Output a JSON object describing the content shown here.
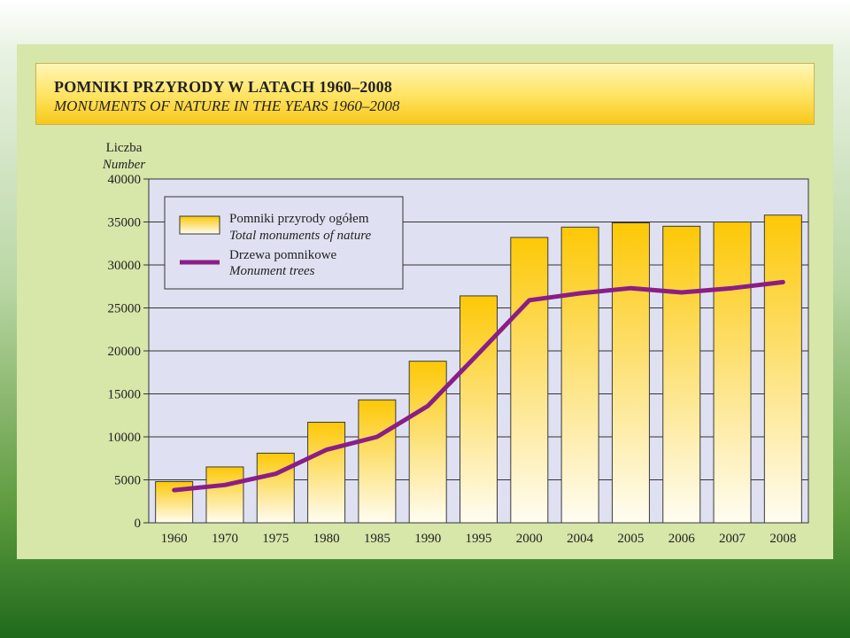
{
  "header": {
    "title_pl": "POMNIKI PRZYRODY W LATACH 1960–2008",
    "title_en": "MONUMENTS OF NATURE IN THE YEARS 1960–2008"
  },
  "chart_data": {
    "type": "bar",
    "title": "POMNIKI PRZYRODY W LATACH 1960–2008",
    "subtitle": "MONUMENTS OF NATURE IN THE YEARS 1960–2008",
    "ylabel": "Liczba",
    "ylabel_en": "Number",
    "xlabel": "",
    "ylim": [
      0,
      40000
    ],
    "yticks": [
      0,
      5000,
      10000,
      15000,
      20000,
      25000,
      30000,
      35000,
      40000
    ],
    "categories": [
      "1960",
      "1970",
      "1975",
      "1980",
      "1985",
      "1990",
      "1995",
      "2000",
      "2004",
      "2005",
      "2006",
      "2007",
      "2008"
    ],
    "series": [
      {
        "name": "Pomniki przyrody ogółem",
        "name_en": "Total monuments of nature",
        "kind": "bar",
        "values": [
          4800,
          6500,
          8100,
          11700,
          14300,
          18800,
          26400,
          33200,
          34400,
          34900,
          34500,
          35000,
          35800
        ]
      },
      {
        "name": "Drzewa pomnikowe",
        "name_en": "Monument trees",
        "kind": "line",
        "values": [
          3800,
          4400,
          5700,
          8500,
          10000,
          13600,
          19700,
          25900,
          26700,
          27300,
          26800,
          27300,
          28000
        ]
      }
    ],
    "legend": "top-left",
    "grid": true,
    "colors": {
      "bar_top": "#fdc807",
      "bar_bottom": "#fffdf0",
      "bar_stroke": "#3a3a3a",
      "line": "#8b1e86",
      "plot_bg": "#dfe1f2",
      "grid": "#333333"
    }
  }
}
